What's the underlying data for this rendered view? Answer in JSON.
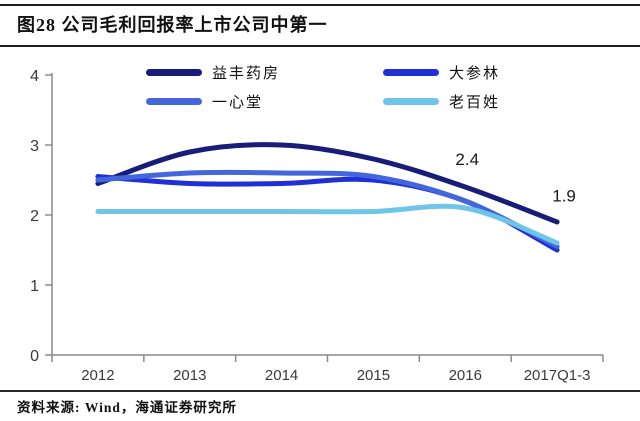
{
  "figure": {
    "title": "图28 公司毛利回报率上市公司中第一",
    "source_note": "资料来源: Wind，海通证券研究所"
  },
  "chart_data": {
    "type": "line",
    "categories": [
      "2012",
      "2013",
      "2014",
      "2015",
      "2016",
      "2017Q1-3"
    ],
    "series": [
      {
        "name": "益丰药房",
        "color": "#171d78",
        "values": [
          2.45,
          2.9,
          3.0,
          2.8,
          2.4,
          1.9
        ]
      },
      {
        "name": "大参林",
        "color": "#2130d6",
        "values": [
          2.55,
          2.45,
          2.45,
          2.5,
          2.2,
          1.5
        ]
      },
      {
        "name": "一心堂",
        "color": "#4466dd",
        "values": [
          2.5,
          2.6,
          2.6,
          2.55,
          2.2,
          1.55
        ]
      },
      {
        "name": "老百姓",
        "color": "#6ec5e8",
        "values": [
          2.05,
          2.05,
          2.05,
          2.05,
          2.1,
          1.6
        ]
      }
    ],
    "ylim": [
      0,
      4
    ],
    "yticks": [
      0,
      1,
      2,
      3,
      4
    ],
    "grid": false,
    "legend_position": "top-center",
    "legend_order": [
      "益丰药房",
      "大参林",
      "一心堂",
      "老百姓"
    ],
    "annotations": [
      {
        "text": "2.4",
        "x_index": 4,
        "y_data": 2.8,
        "dx": 2,
        "series": "益丰药房"
      },
      {
        "text": "1.9",
        "x_index": 5,
        "y_data": 2.28,
        "dx": 7,
        "series": "益丰药房"
      }
    ],
    "colors": {
      "axis": "#8a8a8a",
      "tick_label": "#3a3a3a",
      "annotation": "#1a1a1a"
    }
  }
}
